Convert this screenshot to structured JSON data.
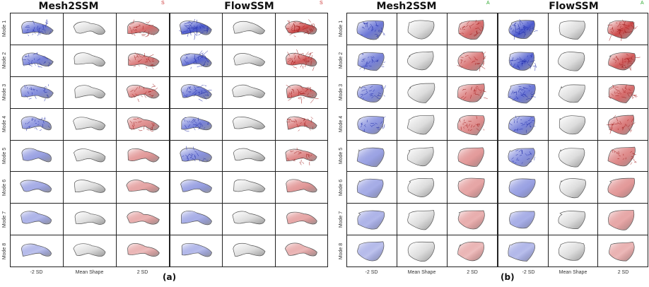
{
  "figure": {
    "panels": [
      {
        "id": "a",
        "sub_label": "(a)",
        "mode_labels": [
          "Mode 1",
          "Mode 2",
          "Mode 3",
          "Mode 4",
          "Mode 5",
          "Mode 6",
          "Mode 7",
          "Mode 8"
        ],
        "column_labels": [
          "-2 SD",
          "Mean Shape",
          "2 SD"
        ],
        "groups": [
          {
            "title": "Mesh2SSM",
            "corner_marker": "S",
            "corner_color": "#cc3333"
          },
          {
            "title": "FlowSSM",
            "corner_marker": "S",
            "corner_color": "#cc3333"
          }
        ]
      },
      {
        "id": "b",
        "sub_label": "(b)",
        "mode_labels": [
          "Mode 1",
          "Mode 2",
          "Mode 3",
          "Mode 4",
          "Mode 5",
          "Mode 6",
          "Mode 7",
          "Mode 8"
        ],
        "column_labels": [
          "-2 SD",
          "Mean Shape",
          "2 SD"
        ],
        "groups": [
          {
            "title": "Mesh2SSM",
            "corner_marker": "A",
            "corner_color": "#33aa33"
          },
          {
            "title": "FlowSSM",
            "corner_marker": "A",
            "corner_color": "#33aa33"
          }
        ]
      }
    ],
    "colors": {
      "negative": "#3a49c8",
      "positive": "#c83a3a",
      "neutral": "#e6e6e6",
      "grid": "#222222"
    }
  }
}
